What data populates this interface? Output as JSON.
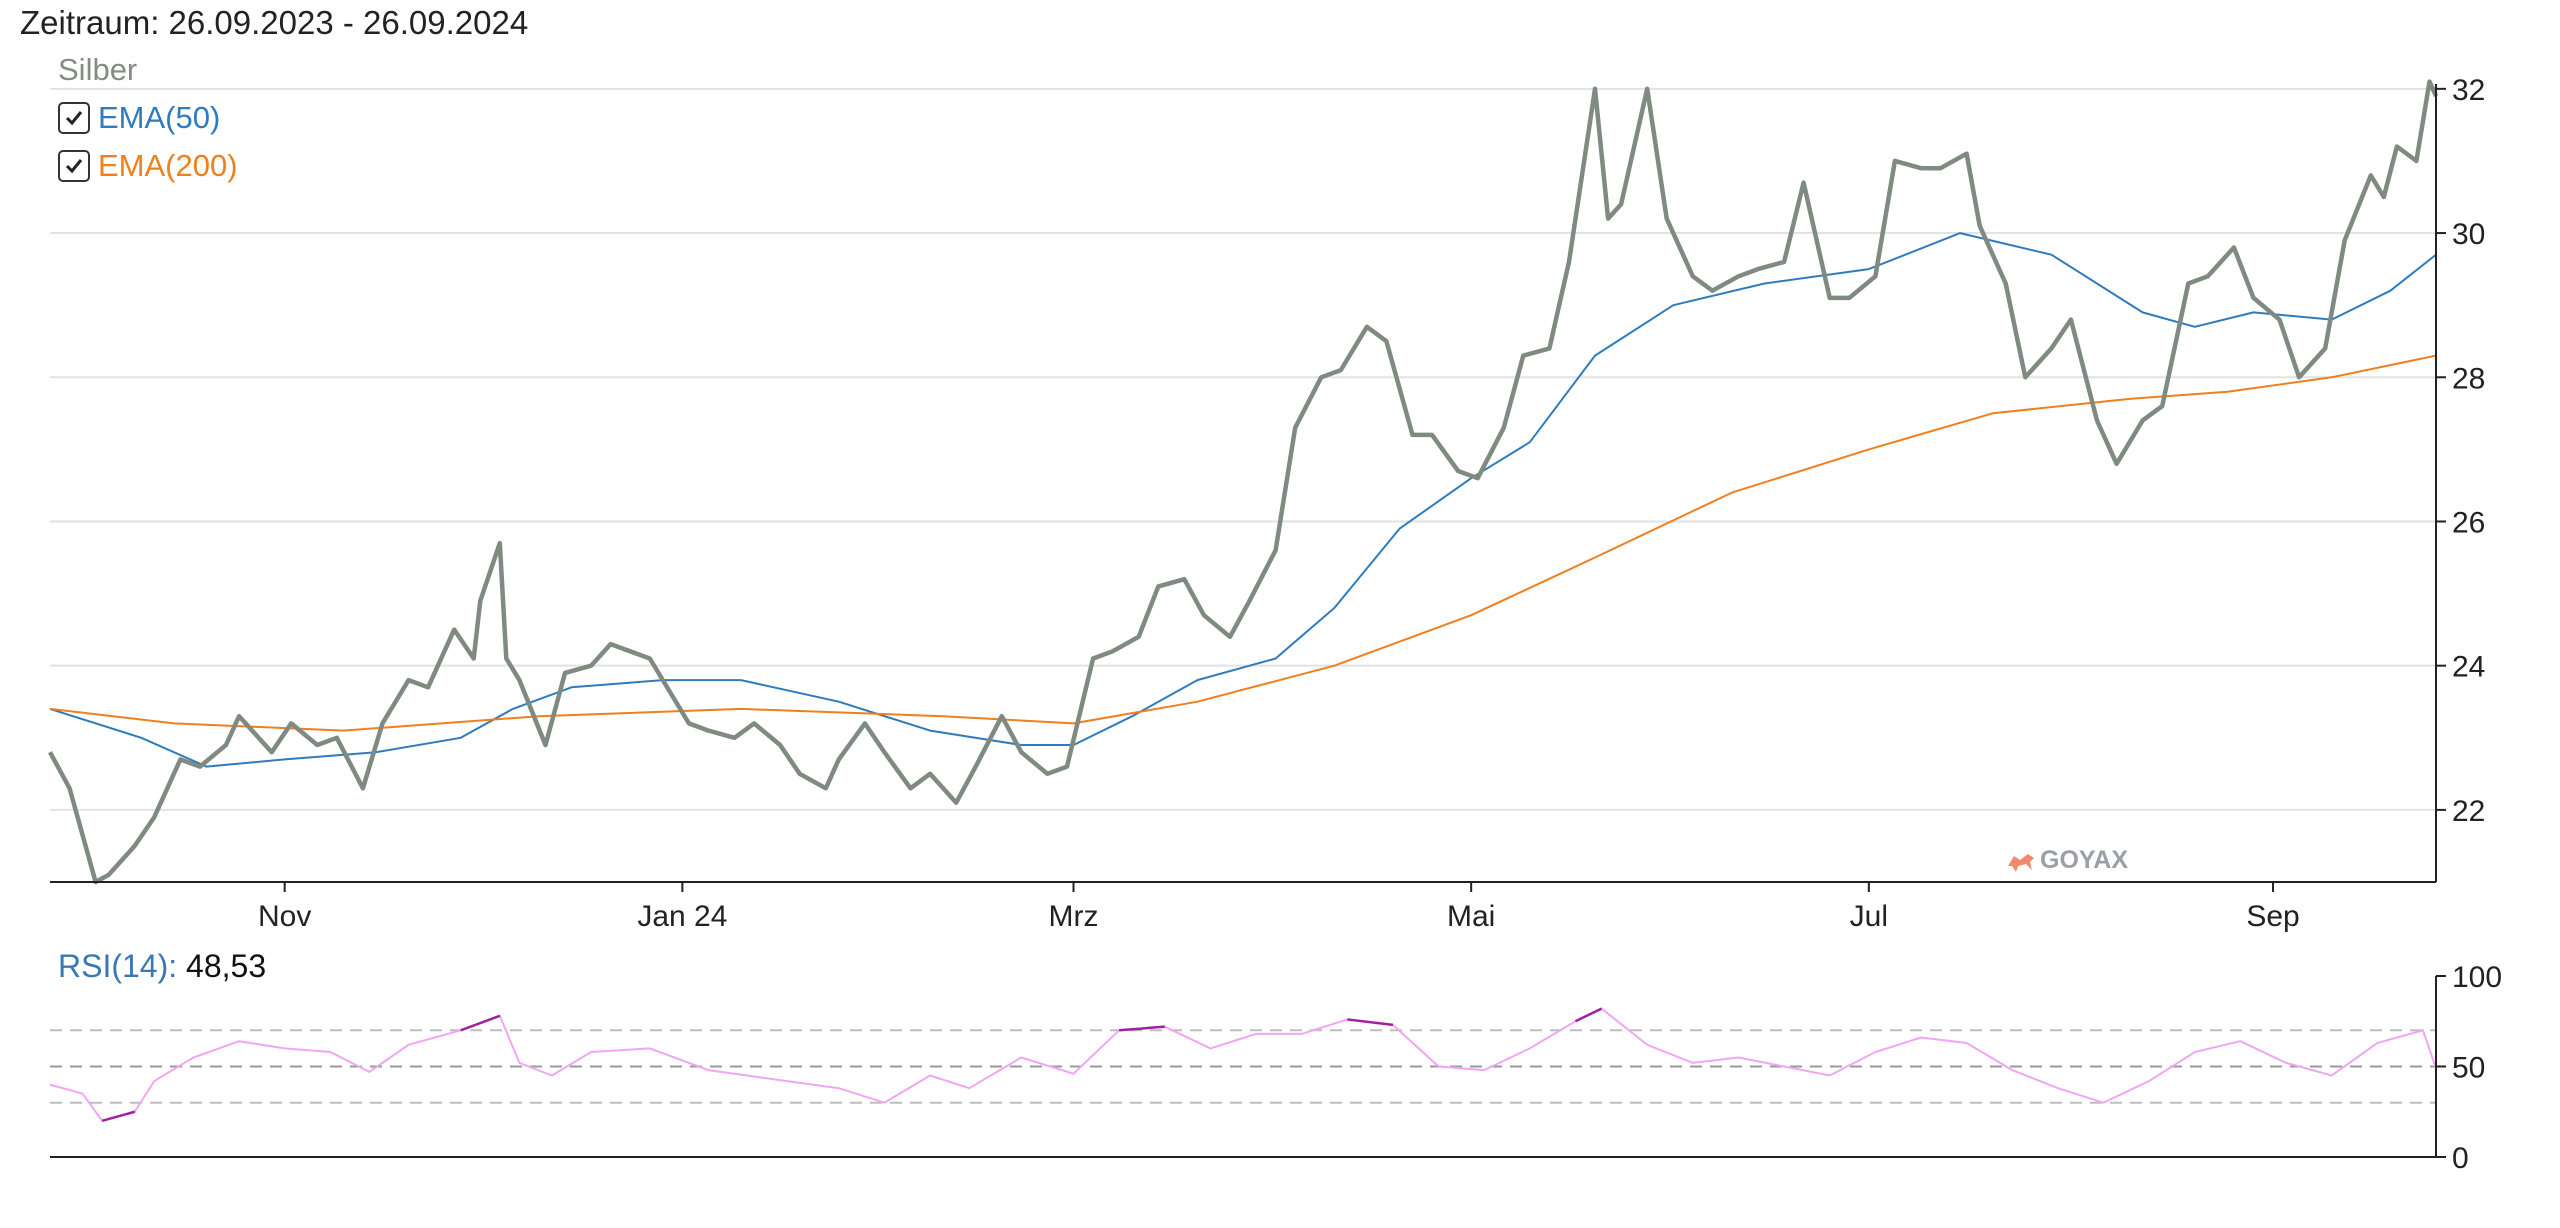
{
  "header": {
    "title": "Zeitraum: 26.09.2023 - 26.09.2024",
    "instrument": "Silber"
  },
  "legend": [
    {
      "label": "EMA(50)",
      "color": "#2f7bbd",
      "checked": true
    },
    {
      "label": "EMA(200)",
      "color": "#f07f1d",
      "checked": true
    }
  ],
  "watermark": "GOYAX",
  "rsi": {
    "name": "RSI(14)",
    "separator": ":",
    "value": "48,53",
    "color": "#f0a6f0",
    "extreme_color": "#a020a0",
    "yticks": [
      "100",
      "50",
      "0"
    ],
    "guides": [
      30,
      50,
      70
    ]
  },
  "colors": {
    "price": "#7f8a80",
    "ema50": "#2f7bbd",
    "ema200": "#f07f1d",
    "grid": "#e2e2e2"
  },
  "chart_data": [
    {
      "type": "line",
      "x_type": "date",
      "x_range": [
        "2023-09-26",
        "2024-09-26"
      ],
      "ylim": [
        21,
        32.4
      ],
      "yticks": [
        "22",
        "24",
        "26",
        "28",
        "30",
        "32"
      ],
      "xticks": [
        {
          "date": "2023-11-01",
          "label": "Nov"
        },
        {
          "date": "2024-01-01",
          "label": "Jan 24"
        },
        {
          "date": "2024-03-01",
          "label": "Mrz"
        },
        {
          "date": "2024-05-01",
          "label": "Mai"
        },
        {
          "date": "2024-07-01",
          "label": "Jul"
        },
        {
          "date": "2024-09-01",
          "label": "Sep"
        }
      ],
      "grid": true,
      "series": [
        {
          "name": "Silber",
          "color": "#7f8a80",
          "points": [
            [
              "2023-09-26",
              22.8
            ],
            [
              "2023-09-29",
              22.3
            ],
            [
              "2023-10-03",
              21.0
            ],
            [
              "2023-10-05",
              21.1
            ],
            [
              "2023-10-09",
              21.5
            ],
            [
              "2023-10-12",
              21.9
            ],
            [
              "2023-10-16",
              22.7
            ],
            [
              "2023-10-19",
              22.6
            ],
            [
              "2023-10-23",
              22.9
            ],
            [
              "2023-10-25",
              23.3
            ],
            [
              "2023-10-30",
              22.8
            ],
            [
              "2023-11-02",
              23.2
            ],
            [
              "2023-11-06",
              22.9
            ],
            [
              "2023-11-09",
              23.0
            ],
            [
              "2023-11-13",
              22.3
            ],
            [
              "2023-11-16",
              23.2
            ],
            [
              "2023-11-20",
              23.8
            ],
            [
              "2023-11-23",
              23.7
            ],
            [
              "2023-11-27",
              24.5
            ],
            [
              "2023-11-30",
              24.1
            ],
            [
              "2023-12-01",
              24.9
            ],
            [
              "2023-12-04",
              25.7
            ],
            [
              "2023-12-05",
              24.1
            ],
            [
              "2023-12-07",
              23.8
            ],
            [
              "2023-12-11",
              22.9
            ],
            [
              "2023-12-14",
              23.9
            ],
            [
              "2023-12-18",
              24.0
            ],
            [
              "2023-12-21",
              24.3
            ],
            [
              "2023-12-27",
              24.1
            ],
            [
              "2024-01-02",
              23.2
            ],
            [
              "2024-01-05",
              23.1
            ],
            [
              "2024-01-09",
              23.0
            ],
            [
              "2024-01-12",
              23.2
            ],
            [
              "2024-01-16",
              22.9
            ],
            [
              "2024-01-19",
              22.5
            ],
            [
              "2024-01-23",
              22.3
            ],
            [
              "2024-01-25",
              22.7
            ],
            [
              "2024-01-29",
              23.2
            ],
            [
              "2024-02-01",
              22.8
            ],
            [
              "2024-02-05",
              22.3
            ],
            [
              "2024-02-08",
              22.5
            ],
            [
              "2024-02-12",
              22.1
            ],
            [
              "2024-02-15",
              22.6
            ],
            [
              "2024-02-19",
              23.3
            ],
            [
              "2024-02-22",
              22.8
            ],
            [
              "2024-02-26",
              22.5
            ],
            [
              "2024-02-29",
              22.6
            ],
            [
              "2024-03-04",
              24.1
            ],
            [
              "2024-03-07",
              24.2
            ],
            [
              "2024-03-11",
              24.4
            ],
            [
              "2024-03-14",
              25.1
            ],
            [
              "2024-03-18",
              25.2
            ],
            [
              "2024-03-21",
              24.7
            ],
            [
              "2024-03-25",
              24.4
            ],
            [
              "2024-03-28",
              24.9
            ],
            [
              "2024-04-01",
              25.6
            ],
            [
              "2024-04-04",
              27.3
            ],
            [
              "2024-04-08",
              28.0
            ],
            [
              "2024-04-11",
              28.1
            ],
            [
              "2024-04-15",
              28.7
            ],
            [
              "2024-04-18",
              28.5
            ],
            [
              "2024-04-22",
              27.2
            ],
            [
              "2024-04-25",
              27.2
            ],
            [
              "2024-04-29",
              26.7
            ],
            [
              "2024-05-02",
              26.6
            ],
            [
              "2024-05-06",
              27.3
            ],
            [
              "2024-05-09",
              28.3
            ],
            [
              "2024-05-13",
              28.4
            ],
            [
              "2024-05-16",
              29.6
            ],
            [
              "2024-05-20",
              32.0
            ],
            [
              "2024-05-22",
              30.2
            ],
            [
              "2024-05-24",
              30.4
            ],
            [
              "2024-05-28",
              32.0
            ],
            [
              "2024-05-31",
              30.2
            ],
            [
              "2024-06-04",
              29.4
            ],
            [
              "2024-06-07",
              29.2
            ],
            [
              "2024-06-11",
              29.4
            ],
            [
              "2024-06-14",
              29.5
            ],
            [
              "2024-06-18",
              29.6
            ],
            [
              "2024-06-21",
              30.7
            ],
            [
              "2024-06-25",
              29.1
            ],
            [
              "2024-06-28",
              29.1
            ],
            [
              "2024-07-02",
              29.4
            ],
            [
              "2024-07-05",
              31.0
            ],
            [
              "2024-07-09",
              30.9
            ],
            [
              "2024-07-12",
              30.9
            ],
            [
              "2024-07-16",
              31.1
            ],
            [
              "2024-07-18",
              30.1
            ],
            [
              "2024-07-22",
              29.3
            ],
            [
              "2024-07-25",
              28.0
            ],
            [
              "2024-07-29",
              28.4
            ],
            [
              "2024-08-01",
              28.8
            ],
            [
              "2024-08-05",
              27.4
            ],
            [
              "2024-08-08",
              26.8
            ],
            [
              "2024-08-12",
              27.4
            ],
            [
              "2024-08-15",
              27.6
            ],
            [
              "2024-08-19",
              29.3
            ],
            [
              "2024-08-22",
              29.4
            ],
            [
              "2024-08-26",
              29.8
            ],
            [
              "2024-08-29",
              29.1
            ],
            [
              "2024-09-02",
              28.8
            ],
            [
              "2024-09-05",
              28.0
            ],
            [
              "2024-09-09",
              28.4
            ],
            [
              "2024-09-12",
              29.9
            ],
            [
              "2024-09-16",
              30.8
            ],
            [
              "2024-09-18",
              30.5
            ],
            [
              "2024-09-20",
              31.2
            ],
            [
              "2024-09-23",
              31.0
            ],
            [
              "2024-09-25",
              32.1
            ],
            [
              "2024-09-26",
              31.9
            ]
          ]
        },
        {
          "name": "EMA(50)",
          "color": "#2f7bbd",
          "points": [
            [
              "2023-09-26",
              23.4
            ],
            [
              "2023-10-10",
              23.0
            ],
            [
              "2023-10-20",
              22.6
            ],
            [
              "2023-11-01",
              22.7
            ],
            [
              "2023-11-15",
              22.8
            ],
            [
              "2023-11-28",
              23.0
            ],
            [
              "2023-12-06",
              23.4
            ],
            [
              "2023-12-15",
              23.7
            ],
            [
              "2023-12-29",
              23.8
            ],
            [
              "2024-01-10",
              23.8
            ],
            [
              "2024-01-25",
              23.5
            ],
            [
              "2024-02-08",
              23.1
            ],
            [
              "2024-02-22",
              22.9
            ],
            [
              "2024-03-01",
              22.9
            ],
            [
              "2024-03-10",
              23.3
            ],
            [
              "2024-03-20",
              23.8
            ],
            [
              "2024-04-01",
              24.1
            ],
            [
              "2024-04-10",
              24.8
            ],
            [
              "2024-04-20",
              25.9
            ],
            [
              "2024-05-01",
              26.6
            ],
            [
              "2024-05-10",
              27.1
            ],
            [
              "2024-05-20",
              28.3
            ],
            [
              "2024-06-01",
              29.0
            ],
            [
              "2024-06-15",
              29.3
            ],
            [
              "2024-07-01",
              29.5
            ],
            [
              "2024-07-15",
              30.0
            ],
            [
              "2024-07-29",
              29.7
            ],
            [
              "2024-08-12",
              28.9
            ],
            [
              "2024-08-20",
              28.7
            ],
            [
              "2024-08-29",
              28.9
            ],
            [
              "2024-09-10",
              28.8
            ],
            [
              "2024-09-19",
              29.2
            ],
            [
              "2024-09-26",
              29.7
            ]
          ]
        },
        {
          "name": "EMA(200)",
          "color": "#f07f1d",
          "points": [
            [
              "2023-09-26",
              23.4
            ],
            [
              "2023-10-15",
              23.2
            ],
            [
              "2023-11-10",
              23.1
            ],
            [
              "2023-12-10",
              23.3
            ],
            [
              "2024-01-10",
              23.4
            ],
            [
              "2024-02-10",
              23.3
            ],
            [
              "2024-03-01",
              23.2
            ],
            [
              "2024-03-20",
              23.5
            ],
            [
              "2024-04-10",
              24.0
            ],
            [
              "2024-05-01",
              24.7
            ],
            [
              "2024-05-20",
              25.5
            ],
            [
              "2024-06-10",
              26.4
            ],
            [
              "2024-07-01",
              27.0
            ],
            [
              "2024-07-20",
              27.5
            ],
            [
              "2024-08-10",
              27.7
            ],
            [
              "2024-08-25",
              27.8
            ],
            [
              "2024-09-10",
              28.0
            ],
            [
              "2024-09-26",
              28.3
            ]
          ]
        }
      ]
    },
    {
      "type": "line",
      "title": "RSI(14): 48,53",
      "ylim": [
        0,
        100
      ],
      "yticks": [
        "100",
        "50",
        "0"
      ],
      "series": [
        {
          "name": "RSI(14)",
          "color": "#f0a6f0",
          "points": [
            [
              "2023-09-26",
              40
            ],
            [
              "2023-10-01",
              35
            ],
            [
              "2023-10-04",
              20
            ],
            [
              "2023-10-09",
              25
            ],
            [
              "2023-10-12",
              42
            ],
            [
              "2023-10-18",
              55
            ],
            [
              "2023-10-25",
              64
            ],
            [
              "2023-11-01",
              60
            ],
            [
              "2023-11-08",
              58
            ],
            [
              "2023-11-14",
              47
            ],
            [
              "2023-11-20",
              62
            ],
            [
              "2023-11-28",
              70
            ],
            [
              "2023-12-04",
              78
            ],
            [
              "2023-12-07",
              52
            ],
            [
              "2023-12-12",
              45
            ],
            [
              "2023-12-18",
              58
            ],
            [
              "2023-12-27",
              60
            ],
            [
              "2024-01-05",
              48
            ],
            [
              "2024-01-15",
              43
            ],
            [
              "2024-01-25",
              38
            ],
            [
              "2024-02-01",
              30
            ],
            [
              "2024-02-08",
              45
            ],
            [
              "2024-02-14",
              38
            ],
            [
              "2024-02-22",
              55
            ],
            [
              "2024-03-01",
              46
            ],
            [
              "2024-03-08",
              70
            ],
            [
              "2024-03-15",
              72
            ],
            [
              "2024-03-22",
              60
            ],
            [
              "2024-03-29",
              68
            ],
            [
              "2024-04-05",
              68
            ],
            [
              "2024-04-12",
              76
            ],
            [
              "2024-04-19",
              73
            ],
            [
              "2024-04-26",
              50
            ],
            [
              "2024-05-03",
              48
            ],
            [
              "2024-05-10",
              60
            ],
            [
              "2024-05-17",
              75
            ],
            [
              "2024-05-21",
              82
            ],
            [
              "2024-05-28",
              62
            ],
            [
              "2024-06-04",
              52
            ],
            [
              "2024-06-11",
              55
            ],
            [
              "2024-06-18",
              50
            ],
            [
              "2024-06-25",
              45
            ],
            [
              "2024-07-02",
              58
            ],
            [
              "2024-07-09",
              66
            ],
            [
              "2024-07-16",
              63
            ],
            [
              "2024-07-23",
              48
            ],
            [
              "2024-07-30",
              38
            ],
            [
              "2024-08-06",
              30
            ],
            [
              "2024-08-13",
              42
            ],
            [
              "2024-08-20",
              58
            ],
            [
              "2024-08-27",
              64
            ],
            [
              "2024-09-03",
              52
            ],
            [
              "2024-09-10",
              45
            ],
            [
              "2024-09-17",
              63
            ],
            [
              "2024-09-24",
              70
            ],
            [
              "2024-09-26",
              49
            ]
          ]
        }
      ]
    }
  ]
}
